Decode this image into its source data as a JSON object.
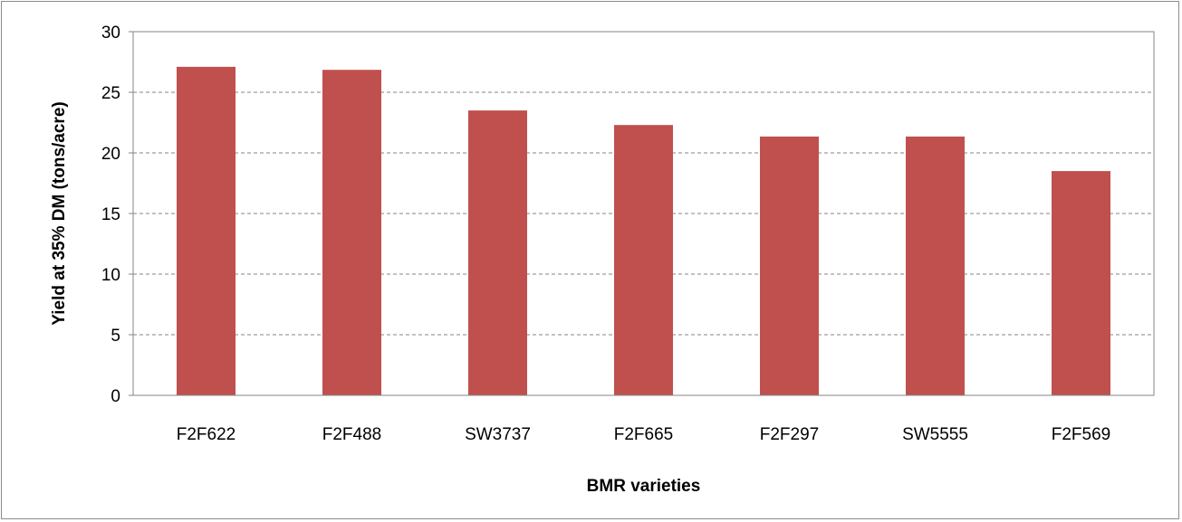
{
  "chart_data": {
    "type": "bar",
    "title": "",
    "xlabel": "BMR varieties",
    "ylabel": "Yield at 35% DM (tons/acre)",
    "categories": [
      "F2F622",
      "F2F488",
      "SW3737",
      "F2F665",
      "F2F297",
      "SW5555",
      "F2F569"
    ],
    "values": [
      27.1,
      26.85,
      23.5,
      22.3,
      21.35,
      21.35,
      18.5
    ],
    "ylim": [
      0,
      30
    ],
    "yticks": [
      0,
      5,
      10,
      15,
      20,
      25,
      30
    ],
    "grid": "horizontal dashed",
    "legend": "none",
    "colors": {
      "bar": "#c0504d",
      "grid": "#868686",
      "axis": "#868686"
    }
  }
}
